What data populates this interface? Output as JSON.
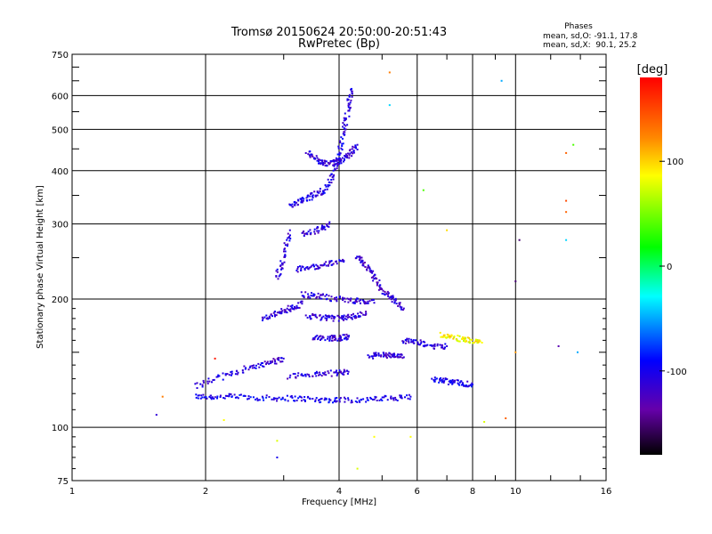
{
  "chart_data": {
    "type": "scatter",
    "title": "Tromsø 20150624 20:50:00-20:51:43",
    "subtitle": "RwPretec (Bp)",
    "xlabel": "Frequency [MHz]",
    "ylabel": "Stationary phase Virtual Height [km]",
    "x_scale": "log",
    "y_scale": "log",
    "xlim": [
      1,
      16
    ],
    "ylim": [
      75,
      750
    ],
    "x_ticks": [
      "1",
      "2",
      "4",
      "6",
      "8",
      "10",
      "16"
    ],
    "y_ticks": [
      "75",
      "100",
      "200",
      "300",
      "400",
      "500",
      "600",
      "750"
    ],
    "grid": true,
    "stats": {
      "heading": "Phases",
      "o_line": "mean, sd,O: -91.1, 17.8",
      "x_line": "mean, sd,X:  90.1, 25.2"
    },
    "colorbar": {
      "label": "[deg]",
      "ticks": [
        "100",
        "0",
        "-100"
      ],
      "tick_values": [
        100,
        0,
        -100
      ],
      "range": [
        -180,
        180
      ]
    },
    "traces": [
      {
        "x": [
          1.9,
          2.1,
          2.4,
          2.8,
          3.2,
          3.6,
          4.0,
          4.6,
          5.2,
          5.8
        ],
        "y": [
          118,
          118,
          118,
          117,
          117,
          116,
          116,
          116,
          117,
          118
        ],
        "phase": -100
      },
      {
        "x": [
          1.9,
          2.2,
          2.5,
          2.8,
          3.0
        ],
        "y": [
          125,
          132,
          138,
          142,
          145
        ],
        "phase": -110
      },
      {
        "x": [
          3.1,
          3.5,
          3.9,
          4.2
        ],
        "y": [
          132,
          133,
          134,
          135
        ],
        "phase": -110
      },
      {
        "x": [
          4.7,
          5.0,
          5.3,
          5.6
        ],
        "y": [
          147,
          148,
          147,
          146
        ],
        "phase": -110
      },
      {
        "x": [
          3.5,
          3.8,
          4.0,
          4.2
        ],
        "y": [
          163,
          162,
          162,
          163
        ],
        "phase": -110
      },
      {
        "x": [
          3.4,
          3.7,
          4.0,
          4.3,
          4.6
        ],
        "y": [
          182,
          181,
          180,
          182,
          185
        ],
        "phase": -110
      },
      {
        "x": [
          3.3,
          3.6,
          4.0,
          4.4,
          4.8
        ],
        "y": [
          205,
          203,
          200,
          198,
          196
        ],
        "phase": -110
      },
      {
        "x": [
          3.2,
          3.5,
          3.8,
          4.1
        ],
        "y": [
          235,
          238,
          242,
          246
        ],
        "phase": -110
      },
      {
        "x": [
          3.3,
          3.6,
          3.8
        ],
        "y": [
          285,
          290,
          300
        ],
        "phase": -110
      },
      {
        "x": [
          3.1,
          3.3,
          3.5,
          3.7,
          3.9,
          4.0,
          4.1,
          4.2,
          4.25
        ],
        "y": [
          330,
          340,
          350,
          360,
          390,
          440,
          500,
          560,
          620
        ],
        "phase": -105
      },
      {
        "x": [
          3.4,
          3.6,
          3.8,
          4.0,
          4.2,
          4.4
        ],
        "y": [
          440,
          420,
          415,
          420,
          435,
          460
        ],
        "phase": -110
      },
      {
        "x": [
          4.4,
          4.6,
          4.8,
          5.0,
          5.3,
          5.6
        ],
        "y": [
          250,
          240,
          225,
          210,
          200,
          190
        ],
        "phase": -115
      },
      {
        "x": [
          5.6,
          6.0,
          6.5,
          7.0
        ],
        "y": [
          160,
          158,
          155,
          155
        ],
        "phase": -110
      },
      {
        "x": [
          6.8,
          7.3,
          7.8,
          8.4
        ],
        "y": [
          165,
          162,
          160,
          158
        ],
        "phase": 90
      },
      {
        "x": [
          6.5,
          7.0,
          7.5,
          8.0
        ],
        "y": [
          130,
          128,
          127,
          126
        ],
        "phase": -100
      },
      {
        "x": [
          2.7,
          2.9,
          3.1,
          3.3
        ],
        "y": [
          180,
          185,
          190,
          195
        ],
        "phase": -110
      },
      {
        "x": [
          2.9,
          3.0,
          3.1
        ],
        "y": [
          225,
          250,
          290
        ],
        "phase": -110
      }
    ],
    "scatter_points": [
      {
        "x": 1.55,
        "y": 107,
        "phase": -110
      },
      {
        "x": 1.6,
        "y": 118,
        "phase": 130
      },
      {
        "x": 2.2,
        "y": 104,
        "phase": 90
      },
      {
        "x": 2.9,
        "y": 93,
        "phase": 80
      },
      {
        "x": 2.9,
        "y": 85,
        "phase": -100
      },
      {
        "x": 2.1,
        "y": 145,
        "phase": 170
      },
      {
        "x": 4.4,
        "y": 80,
        "phase": 80
      },
      {
        "x": 4.8,
        "y": 95,
        "phase": 90
      },
      {
        "x": 5.2,
        "y": 680,
        "phase": 130
      },
      {
        "x": 5.2,
        "y": 570,
        "phase": -40
      },
      {
        "x": 5.8,
        "y": 95,
        "phase": 90
      },
      {
        "x": 6.2,
        "y": 360,
        "phase": 40
      },
      {
        "x": 7.0,
        "y": 290,
        "phase": 100
      },
      {
        "x": 8.5,
        "y": 103,
        "phase": 80
      },
      {
        "x": 9.3,
        "y": 650,
        "phase": -50
      },
      {
        "x": 10.2,
        "y": 275,
        "phase": -150
      },
      {
        "x": 10.0,
        "y": 220,
        "phase": -150
      },
      {
        "x": 9.5,
        "y": 105,
        "phase": 140
      },
      {
        "x": 13.0,
        "y": 440,
        "phase": 140
      },
      {
        "x": 13.5,
        "y": 460,
        "phase": 40
      },
      {
        "x": 13.0,
        "y": 340,
        "phase": 150
      },
      {
        "x": 13.0,
        "y": 320,
        "phase": 140
      },
      {
        "x": 13.0,
        "y": 275,
        "phase": -40
      },
      {
        "x": 13.8,
        "y": 150,
        "phase": -50
      },
      {
        "x": 12.5,
        "y": 155,
        "phase": -130
      },
      {
        "x": 10.0,
        "y": 150,
        "phase": 120
      }
    ]
  }
}
